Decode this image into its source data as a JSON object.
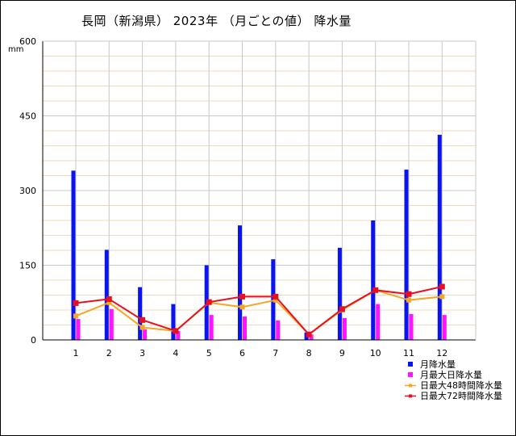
{
  "chart": {
    "title": "長岡（新潟県） 2023年 （月ごとの値） 降水量",
    "unit": "mm"
  },
  "legend": [
    {
      "name": "月降水量",
      "color": "#0a14f0",
      "shape": "square"
    },
    {
      "name": "月最大日降水量",
      "color": "#ff14ff",
      "shape": "square"
    },
    {
      "name": "日最大48時間降水量",
      "color": "#f5a623",
      "shape": "line-point"
    },
    {
      "name": "日最大72時間降水量",
      "color": "#e8101e",
      "shape": "line-point"
    }
  ],
  "chart_data": {
    "type": "bar",
    "title": "長岡（新潟県） 2023年 （月ごとの値） 降水量",
    "ylabel": "mm",
    "ylim": [
      0,
      600
    ],
    "yticks": [
      0,
      150,
      300,
      450,
      600
    ],
    "categories": [
      "1",
      "2",
      "3",
      "4",
      "5",
      "6",
      "7",
      "8",
      "9",
      "10",
      "11",
      "12"
    ],
    "grid": true,
    "legend_position": "bottom-right",
    "series": [
      {
        "name": "月降水量",
        "type": "bar",
        "color": "#0a14f0",
        "values": [
          340,
          181,
          106,
          72,
          150,
          230,
          162,
          15,
          185,
          240,
          342,
          412
        ]
      },
      {
        "name": "月最大日降水量",
        "type": "bar",
        "color": "#ff14ff",
        "values": [
          42,
          62,
          21,
          18,
          50,
          47,
          39,
          11,
          44,
          72,
          52,
          50
        ]
      },
      {
        "name": "日最大48時間降水量",
        "type": "line",
        "color": "#f5a623",
        "values": [
          48,
          75,
          25,
          18,
          75,
          66,
          80,
          11,
          60,
          100,
          80,
          87
        ]
      },
      {
        "name": "日最大72時間降水量",
        "type": "line",
        "color": "#e8101e",
        "values": [
          74,
          82,
          40,
          18,
          76,
          87,
          87,
          11,
          62,
          100,
          92,
          107
        ]
      }
    ]
  }
}
